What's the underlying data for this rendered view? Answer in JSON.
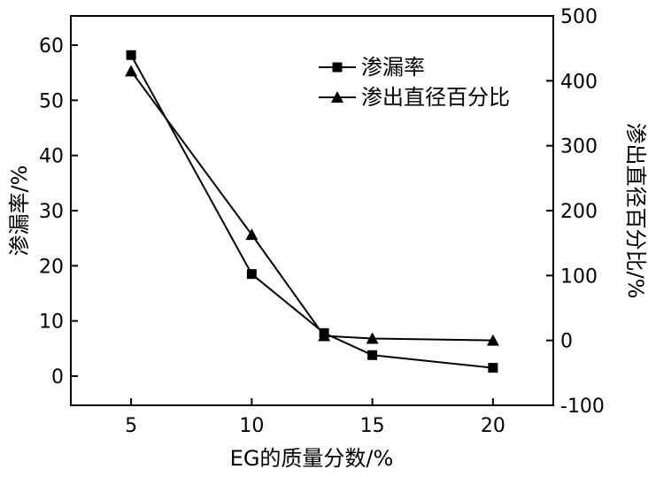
{
  "chart_data": {
    "type": "line",
    "x": [
      5,
      10,
      13,
      15,
      20
    ],
    "xlabel": "EG的质量分数/%",
    "xticks": [
      5,
      10,
      15,
      20
    ],
    "xlim": [
      2.5,
      22.5
    ],
    "y_left": {
      "label": "渗漏率/%",
      "ticks": [
        0,
        10,
        20,
        30,
        40,
        50,
        60
      ],
      "lim": [
        -5.3,
        65.3
      ]
    },
    "y_right": {
      "label": "渗出直径百分比/%",
      "ticks": [
        -100,
        0,
        100,
        200,
        300,
        400,
        500
      ],
      "lim": [
        -100,
        500
      ]
    },
    "series": [
      {
        "name": "渗漏率",
        "marker": "square",
        "axis": "left",
        "values": [
          58.2,
          18.5,
          7.8,
          3.8,
          1.5
        ]
      },
      {
        "name": "渗出直径百分比",
        "marker": "triangle",
        "axis": "right",
        "values": [
          415,
          163,
          7,
          3,
          0
        ]
      }
    ],
    "legend_position": "top-right",
    "grid": false,
    "colors": {
      "line": "#000000",
      "background": "#ffffff"
    }
  }
}
